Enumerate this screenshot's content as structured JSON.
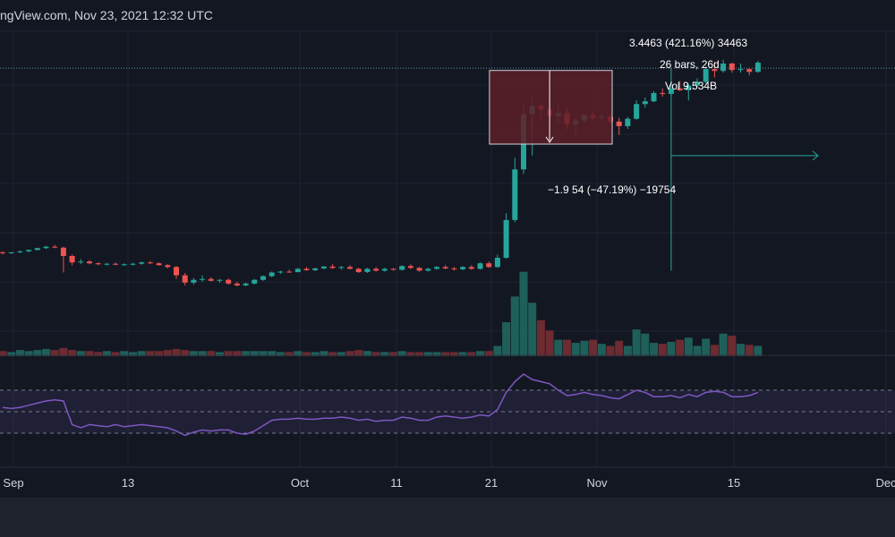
{
  "header": {
    "watermark": "ngView.com, Nov 23, 2021 12:32 UTC"
  },
  "measure_up": {
    "line1": "3.4463 (421.16%) 34463",
    "line2": "26 bars, 26d",
    "line3": "Vol 9.534B"
  },
  "measure_down": {
    "line1": "−1.9 54 (−47.19%) −19754"
  },
  "colors": {
    "bg": "#131722",
    "up": "#26a69a",
    "down": "#ef5350",
    "rsi": "#7e57c2",
    "grid": "#1f2331",
    "text": "#d1d4dc"
  },
  "chart_data": {
    "type": "candlestick",
    "x_tick_labels": [
      "Sep",
      "13",
      "Oct",
      "11",
      "21",
      "Nov",
      "15",
      "Dec"
    ],
    "candles": [
      [
        1.0,
        1.02,
        0.95,
        0.98
      ],
      [
        0.98,
        1.0,
        0.96,
        1.0
      ],
      [
        1.0,
        1.04,
        0.98,
        1.02
      ],
      [
        1.02,
        1.06,
        1.0,
        1.05
      ],
      [
        1.05,
        1.1,
        1.04,
        1.09
      ],
      [
        1.09,
        1.14,
        1.07,
        1.12
      ],
      [
        1.12,
        1.16,
        1.09,
        1.1
      ],
      [
        1.1,
        1.12,
        0.56,
        0.92
      ],
      [
        0.92,
        0.95,
        0.72,
        0.78
      ],
      [
        0.78,
        0.85,
        0.74,
        0.8
      ],
      [
        0.8,
        0.83,
        0.74,
        0.76
      ],
      [
        0.76,
        0.78,
        0.72,
        0.74
      ],
      [
        0.74,
        0.77,
        0.71,
        0.75
      ],
      [
        0.75,
        0.78,
        0.72,
        0.73
      ],
      [
        0.73,
        0.76,
        0.7,
        0.74
      ],
      [
        0.74,
        0.77,
        0.71,
        0.75
      ],
      [
        0.75,
        0.8,
        0.73,
        0.78
      ],
      [
        0.78,
        0.81,
        0.74,
        0.76
      ],
      [
        0.76,
        0.78,
        0.71,
        0.72
      ],
      [
        0.72,
        0.74,
        0.65,
        0.68
      ],
      [
        0.68,
        0.7,
        0.42,
        0.5
      ],
      [
        0.5,
        0.55,
        0.28,
        0.34
      ],
      [
        0.34,
        0.44,
        0.3,
        0.4
      ],
      [
        0.4,
        0.5,
        0.36,
        0.42
      ],
      [
        0.42,
        0.46,
        0.37,
        0.38
      ],
      [
        0.38,
        0.42,
        0.34,
        0.4
      ],
      [
        0.4,
        0.43,
        0.3,
        0.32
      ],
      [
        0.32,
        0.36,
        0.26,
        0.28
      ],
      [
        0.28,
        0.34,
        0.26,
        0.32
      ],
      [
        0.32,
        0.42,
        0.3,
        0.4
      ],
      [
        0.4,
        0.5,
        0.38,
        0.48
      ],
      [
        0.48,
        0.58,
        0.46,
        0.56
      ],
      [
        0.56,
        0.6,
        0.53,
        0.58
      ],
      [
        0.58,
        0.62,
        0.55,
        0.57
      ],
      [
        0.57,
        0.66,
        0.56,
        0.64
      ],
      [
        0.64,
        0.68,
        0.6,
        0.61
      ],
      [
        0.61,
        0.66,
        0.59,
        0.65
      ],
      [
        0.65,
        0.7,
        0.63,
        0.69
      ],
      [
        0.69,
        0.74,
        0.64,
        0.66
      ],
      [
        0.66,
        0.7,
        0.62,
        0.68
      ],
      [
        0.68,
        0.72,
        0.63,
        0.64
      ],
      [
        0.64,
        0.66,
        0.55,
        0.57
      ],
      [
        0.57,
        0.66,
        0.55,
        0.64
      ],
      [
        0.64,
        0.68,
        0.58,
        0.6
      ],
      [
        0.6,
        0.66,
        0.58,
        0.64
      ],
      [
        0.64,
        0.66,
        0.6,
        0.62
      ],
      [
        0.62,
        0.72,
        0.6,
        0.7
      ],
      [
        0.7,
        0.74,
        0.64,
        0.66
      ],
      [
        0.66,
        0.68,
        0.58,
        0.6
      ],
      [
        0.6,
        0.66,
        0.58,
        0.64
      ],
      [
        0.64,
        0.7,
        0.62,
        0.68
      ],
      [
        0.68,
        0.72,
        0.63,
        0.65
      ],
      [
        0.65,
        0.68,
        0.6,
        0.63
      ],
      [
        0.63,
        0.7,
        0.61,
        0.68
      ],
      [
        0.68,
        0.72,
        0.62,
        0.64
      ],
      [
        0.64,
        0.78,
        0.62,
        0.76
      ],
      [
        0.76,
        0.8,
        0.66,
        0.68
      ],
      [
        0.68,
        0.95,
        0.66,
        0.88
      ],
      [
        0.88,
        1.85,
        0.86,
        1.7
      ],
      [
        1.7,
        3.05,
        1.65,
        2.8
      ],
      [
        2.8,
        4.2,
        2.7,
        4.0
      ],
      [
        4.0,
        4.38,
        3.1,
        4.18
      ],
      [
        4.18,
        4.22,
        3.9,
        4.1
      ],
      [
        4.1,
        4.33,
        3.86,
        3.96
      ],
      [
        3.96,
        4.2,
        3.8,
        4.02
      ],
      [
        4.02,
        4.17,
        3.67,
        3.78
      ],
      [
        3.78,
        3.92,
        3.55,
        3.86
      ],
      [
        3.86,
        4.02,
        3.8,
        3.98
      ],
      [
        3.98,
        4.04,
        3.86,
        3.92
      ],
      [
        3.92,
        4.0,
        3.84,
        3.94
      ],
      [
        3.94,
        4.0,
        3.8,
        3.84
      ],
      [
        3.84,
        3.92,
        3.55,
        3.74
      ],
      [
        3.74,
        3.94,
        3.68,
        3.9
      ],
      [
        3.9,
        4.3,
        3.88,
        4.22
      ],
      [
        4.22,
        4.36,
        4.14,
        4.28
      ],
      [
        4.28,
        4.5,
        4.26,
        4.46
      ],
      [
        4.46,
        4.56,
        4.38,
        4.44
      ],
      [
        4.44,
        4.6,
        4.4,
        4.56
      ],
      [
        4.56,
        4.72,
        4.5,
        4.52
      ],
      [
        4.52,
        4.66,
        4.3,
        4.62
      ],
      [
        4.62,
        4.78,
        4.58,
        4.7
      ],
      [
        4.7,
        5.04,
        4.66,
        4.98
      ],
      [
        4.98,
        5.14,
        4.8,
        4.94
      ],
      [
        4.94,
        5.18,
        4.9,
        5.1
      ],
      [
        5.1,
        5.12,
        4.9,
        4.96
      ],
      [
        4.96,
        5.1,
        4.9,
        4.98
      ],
      [
        4.98,
        5.0,
        4.84,
        4.92
      ],
      [
        4.92,
        5.16,
        4.9,
        5.12
      ]
    ],
    "volume": [
      0.05,
      0.04,
      0.06,
      0.05,
      0.06,
      0.07,
      0.06,
      0.08,
      0.06,
      0.05,
      0.05,
      0.04,
      0.05,
      0.04,
      0.05,
      0.04,
      0.05,
      0.05,
      0.05,
      0.06,
      0.07,
      0.06,
      0.05,
      0.05,
      0.05,
      0.04,
      0.05,
      0.05,
      0.05,
      0.05,
      0.05,
      0.05,
      0.04,
      0.04,
      0.05,
      0.04,
      0.04,
      0.05,
      0.04,
      0.04,
      0.05,
      0.06,
      0.05,
      0.04,
      0.04,
      0.04,
      0.05,
      0.04,
      0.04,
      0.04,
      0.04,
      0.04,
      0.04,
      0.04,
      0.04,
      0.05,
      0.05,
      0.1,
      0.33,
      0.58,
      0.82,
      0.52,
      0.35,
      0.25,
      0.16,
      0.16,
      0.13,
      0.15,
      0.16,
      0.12,
      0.1,
      0.15,
      0.1,
      0.26,
      0.22,
      0.13,
      0.12,
      0.14,
      0.16,
      0.18,
      0.1,
      0.17,
      0.11,
      0.22,
      0.2,
      0.12,
      0.11,
      0.1
    ],
    "rsi": [
      54,
      53,
      54,
      56,
      58,
      60,
      61,
      60,
      38,
      35,
      38,
      37,
      36,
      38,
      36,
      37,
      38,
      37,
      36,
      35,
      32,
      28,
      31,
      33,
      32,
      33,
      33,
      30,
      29,
      32,
      37,
      42,
      43,
      43,
      44,
      43,
      43,
      44,
      44,
      45,
      44,
      42,
      43,
      41,
      42,
      42,
      45,
      44,
      42,
      42,
      45,
      46,
      45,
      44,
      45,
      47,
      46,
      52,
      68,
      78,
      85,
      80,
      78,
      76,
      70,
      65,
      66,
      68,
      66,
      65,
      63,
      62,
      66,
      70,
      68,
      64,
      64,
      65,
      63,
      66,
      64,
      68,
      69,
      68,
      64,
      64,
      65,
      68
    ],
    "rsi_levels": [
      70,
      50,
      30
    ],
    "measure_up": {
      "from_index": 57,
      "to_index": 83
    },
    "measure_down": {
      "from_index": 57,
      "to_index": 70
    }
  }
}
